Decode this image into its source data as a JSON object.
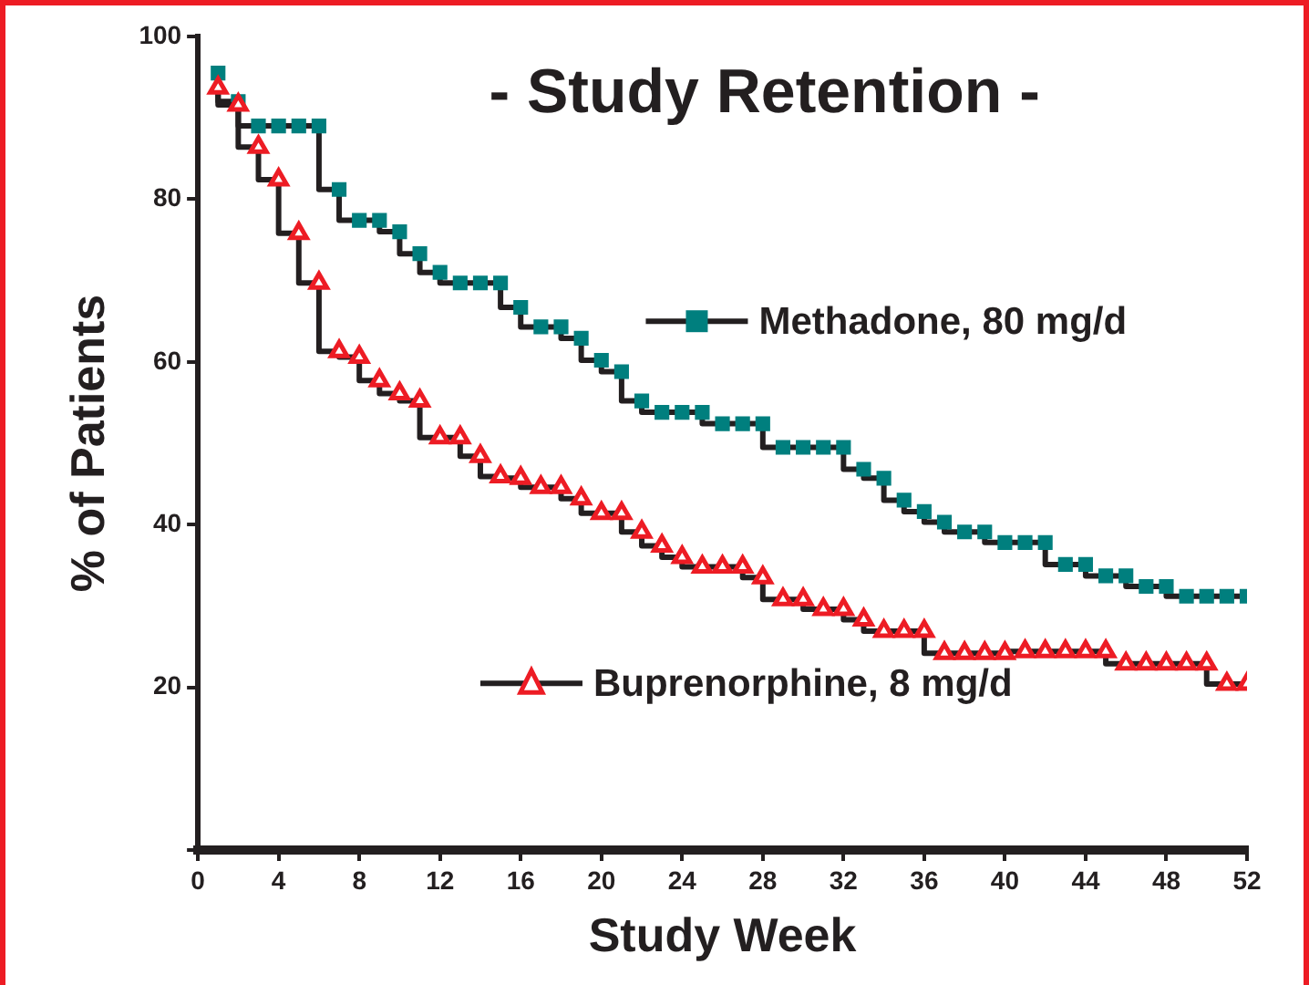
{
  "chart_data": {
    "type": "step",
    "title": "- Study Retention -",
    "xlabel": "Study Week",
    "ylabel": "% of Patients",
    "x": [
      1,
      2,
      3,
      4,
      5,
      6,
      7,
      8,
      9,
      10,
      11,
      12,
      13,
      14,
      15,
      16,
      17,
      18,
      19,
      20,
      21,
      22,
      23,
      24,
      25,
      26,
      27,
      28,
      29,
      30,
      31,
      32,
      33,
      34,
      35,
      36,
      37,
      38,
      39,
      40,
      41,
      42,
      43,
      44,
      45,
      46,
      47,
      48,
      49,
      50,
      51,
      52
    ],
    "series": [
      {
        "name": "Methadone, 80 mg/d",
        "color": "#007f7e",
        "marker": "square",
        "values": [
          95.5,
          92,
          89,
          89,
          89,
          89,
          81.2,
          77.4,
          77.4,
          76,
          73.3,
          71,
          69.7,
          69.7,
          69.7,
          66.7,
          64.3,
          64.3,
          62.9,
          60.2,
          58.8,
          55.2,
          53.8,
          53.8,
          53.8,
          52.4,
          52.4,
          52.4,
          49.5,
          49.5,
          49.5,
          49.5,
          46.8,
          45.7,
          43,
          41.6,
          40.3,
          39.1,
          39.1,
          37.8,
          37.8,
          37.8,
          35.1,
          35.1,
          33.7,
          33.7,
          32.4,
          32.4,
          31.2,
          31.2,
          31.2,
          31.2
        ]
      },
      {
        "name": "Buprenorphine, 8 mg/d",
        "color": "#ed1c24",
        "marker": "triangle",
        "values": [
          93.7,
          91.6,
          86.4,
          82.4,
          75.8,
          69.7,
          61.3,
          60.6,
          57.7,
          56.1,
          55.2,
          50.7,
          50.7,
          48.4,
          45.9,
          45.7,
          44.6,
          44.6,
          43.2,
          41.4,
          41.4,
          39.1,
          37.4,
          36,
          34.8,
          34.8,
          34.8,
          33.5,
          30.8,
          30.8,
          29.6,
          29.6,
          28.3,
          26.9,
          26.9,
          26.9,
          24.2,
          24.2,
          24.2,
          24.2,
          24.4,
          24.4,
          24.4,
          24.4,
          24.4,
          22.9,
          22.9,
          22.9,
          22.9,
          22.9,
          20.4,
          20.4
        ]
      }
    ],
    "xlim": [
      0,
      52
    ],
    "xticks": [
      0,
      4,
      8,
      12,
      16,
      20,
      24,
      28,
      32,
      36,
      40,
      44,
      48,
      52
    ],
    "ylim": [
      0,
      100
    ],
    "yticks": [
      {
        "value": 0,
        "label": null
      },
      20,
      40,
      60,
      80,
      100
    ],
    "grid": false,
    "legend": "right",
    "line_style": "solid"
  }
}
